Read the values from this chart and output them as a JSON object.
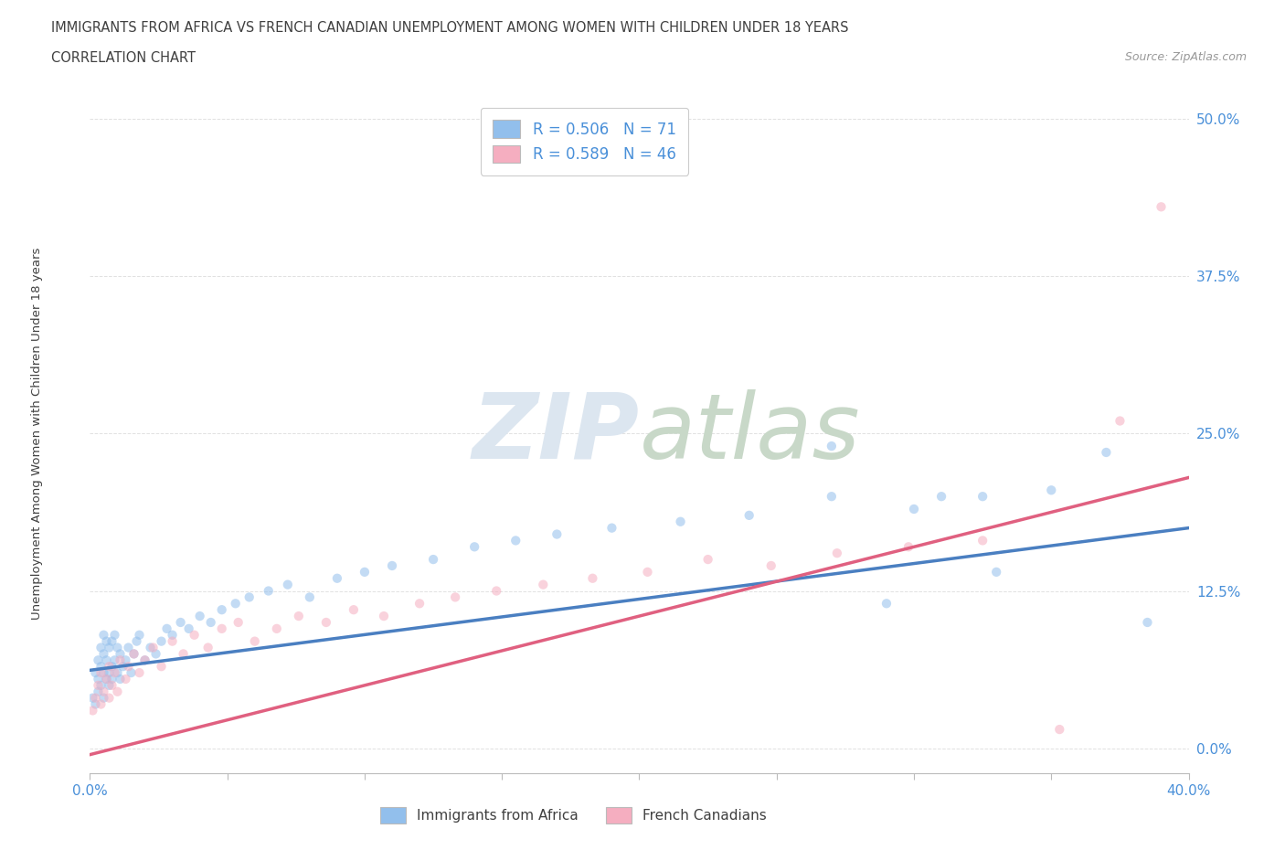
{
  "title_line1": "IMMIGRANTS FROM AFRICA VS FRENCH CANADIAN UNEMPLOYMENT AMONG WOMEN WITH CHILDREN UNDER 18 YEARS",
  "title_line2": "CORRELATION CHART",
  "source_text": "Source: ZipAtlas.com",
  "ylabel": "Unemployment Among Women with Children Under 18 years",
  "xlim": [
    0.0,
    0.4
  ],
  "ylim": [
    -0.02,
    0.52
  ],
  "yticks": [
    0.0,
    0.125,
    0.25,
    0.375,
    0.5
  ],
  "ytick_labels": [
    "0.0%",
    "12.5%",
    "25.0%",
    "37.5%",
    "50.0%"
  ],
  "xticks": [
    0.0,
    0.05,
    0.1,
    0.15,
    0.2,
    0.25,
    0.3,
    0.35,
    0.4
  ],
  "xtick_labels": [
    "0.0%",
    "",
    "",
    "",
    "",
    "",
    "",
    "",
    "40.0%"
  ],
  "blue_r": 0.506,
  "blue_n": 71,
  "pink_r": 0.589,
  "pink_n": 46,
  "blue_color": "#92bfec",
  "pink_color": "#f5aec0",
  "blue_line_color": "#4a7fc1",
  "pink_line_color": "#e06080",
  "scatter_alpha": 0.55,
  "marker_size": 55,
  "background_color": "#ffffff",
  "watermark_color": "#dce6f0",
  "grid_color": "#cccccc",
  "title_color": "#404040",
  "label_color": "#4a90d9",
  "blue_x": [
    0.001,
    0.002,
    0.002,
    0.003,
    0.003,
    0.003,
    0.004,
    0.004,
    0.004,
    0.005,
    0.005,
    0.005,
    0.005,
    0.006,
    0.006,
    0.006,
    0.007,
    0.007,
    0.007,
    0.008,
    0.008,
    0.008,
    0.009,
    0.009,
    0.01,
    0.01,
    0.011,
    0.011,
    0.012,
    0.013,
    0.014,
    0.015,
    0.016,
    0.017,
    0.018,
    0.02,
    0.022,
    0.024,
    0.026,
    0.028,
    0.03,
    0.033,
    0.036,
    0.04,
    0.044,
    0.048,
    0.053,
    0.058,
    0.065,
    0.072,
    0.08,
    0.09,
    0.1,
    0.11,
    0.125,
    0.14,
    0.155,
    0.17,
    0.19,
    0.215,
    0.24,
    0.27,
    0.3,
    0.325,
    0.35,
    0.37,
    0.385,
    0.27,
    0.31,
    0.29,
    0.33
  ],
  "blue_y": [
    0.04,
    0.06,
    0.035,
    0.055,
    0.07,
    0.045,
    0.05,
    0.065,
    0.08,
    0.04,
    0.06,
    0.075,
    0.09,
    0.055,
    0.07,
    0.085,
    0.06,
    0.08,
    0.05,
    0.065,
    0.085,
    0.055,
    0.07,
    0.09,
    0.06,
    0.08,
    0.075,
    0.055,
    0.065,
    0.07,
    0.08,
    0.06,
    0.075,
    0.085,
    0.09,
    0.07,
    0.08,
    0.075,
    0.085,
    0.095,
    0.09,
    0.1,
    0.095,
    0.105,
    0.1,
    0.11,
    0.115,
    0.12,
    0.125,
    0.13,
    0.12,
    0.135,
    0.14,
    0.145,
    0.15,
    0.16,
    0.165,
    0.17,
    0.175,
    0.18,
    0.185,
    0.2,
    0.19,
    0.2,
    0.205,
    0.235,
    0.1,
    0.24,
    0.2,
    0.115,
    0.14
  ],
  "pink_x": [
    0.001,
    0.002,
    0.003,
    0.004,
    0.004,
    0.005,
    0.006,
    0.007,
    0.007,
    0.008,
    0.009,
    0.01,
    0.011,
    0.013,
    0.014,
    0.016,
    0.018,
    0.02,
    0.023,
    0.026,
    0.03,
    0.034,
    0.038,
    0.043,
    0.048,
    0.054,
    0.06,
    0.068,
    0.076,
    0.086,
    0.096,
    0.107,
    0.12,
    0.133,
    0.148,
    0.165,
    0.183,
    0.203,
    0.225,
    0.248,
    0.272,
    0.298,
    0.325,
    0.353,
    0.375,
    0.39
  ],
  "pink_y": [
    0.03,
    0.04,
    0.05,
    0.035,
    0.06,
    0.045,
    0.055,
    0.04,
    0.065,
    0.05,
    0.06,
    0.045,
    0.07,
    0.055,
    0.065,
    0.075,
    0.06,
    0.07,
    0.08,
    0.065,
    0.085,
    0.075,
    0.09,
    0.08,
    0.095,
    0.1,
    0.085,
    0.095,
    0.105,
    0.1,
    0.11,
    0.105,
    0.115,
    0.12,
    0.125,
    0.13,
    0.135,
    0.14,
    0.15,
    0.145,
    0.155,
    0.16,
    0.165,
    0.015,
    0.26,
    0.43
  ],
  "blue_trend_x": [
    0.0,
    0.4
  ],
  "blue_trend_y": [
    0.062,
    0.175
  ],
  "pink_trend_x": [
    0.0,
    0.4
  ],
  "pink_trend_y": [
    -0.005,
    0.215
  ]
}
